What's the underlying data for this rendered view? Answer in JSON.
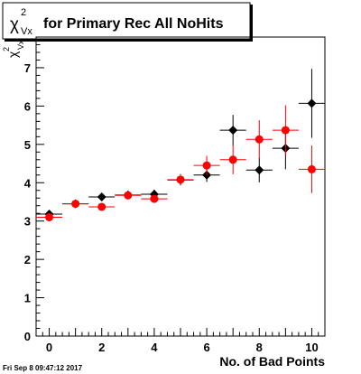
{
  "chart_data": {
    "type": "scatter",
    "title": "for Primary Rec All NoHits",
    "xlabel": "No. of Bad Points",
    "ylabel": "",
    "xlim": [
      -0.5,
      10.5
    ],
    "ylim": [
      0,
      7.8
    ],
    "x_ticks": [
      0,
      2,
      4,
      6,
      8,
      10
    ],
    "y_ticks": [
      0,
      1,
      2,
      3,
      4,
      5,
      6,
      7
    ],
    "grid": false,
    "legend": "none",
    "series": [
      {
        "color": "#000000",
        "marker": "diamond",
        "points": [
          {
            "x": 0,
            "y": 3.18,
            "xerr": 0.5,
            "yerr": 0.06
          },
          {
            "x": 1,
            "y": 3.45,
            "xerr": 0.5,
            "yerr": 0.05
          },
          {
            "x": 2,
            "y": 3.63,
            "xerr": 0.5,
            "yerr": 0.07
          },
          {
            "x": 3,
            "y": 3.68,
            "xerr": 0.5,
            "yerr": 0.08
          },
          {
            "x": 4,
            "y": 3.7,
            "xerr": 0.5,
            "yerr": 0.12
          },
          {
            "x": 5,
            "y": 4.07,
            "xerr": 0.5,
            "yerr": 0.14
          },
          {
            "x": 6,
            "y": 4.2,
            "xerr": 0.5,
            "yerr": 0.18
          },
          {
            "x": 7,
            "y": 5.37,
            "xerr": 0.5,
            "yerr": 0.4
          },
          {
            "x": 8,
            "y": 4.33,
            "xerr": 0.5,
            "yerr": 0.32
          },
          {
            "x": 9,
            "y": 4.9,
            "xerr": 0.5,
            "yerr": 0.55
          },
          {
            "x": 10,
            "y": 6.07,
            "xerr": 0.5,
            "yerr": 0.9
          }
        ]
      },
      {
        "color": "#ff0000",
        "marker": "circle",
        "points": [
          {
            "x": 0,
            "y": 3.1,
            "xerr": 0.5,
            "yerr": 0.05
          },
          {
            "x": 1,
            "y": 3.45,
            "xerr": 0.5,
            "yerr": 0.05
          },
          {
            "x": 2,
            "y": 3.37,
            "xerr": 0.5,
            "yerr": 0.07
          },
          {
            "x": 3,
            "y": 3.67,
            "xerr": 0.5,
            "yerr": 0.08
          },
          {
            "x": 4,
            "y": 3.58,
            "xerr": 0.5,
            "yerr": 0.1
          },
          {
            "x": 5,
            "y": 4.08,
            "xerr": 0.5,
            "yerr": 0.15
          },
          {
            "x": 6,
            "y": 4.45,
            "xerr": 0.5,
            "yerr": 0.25
          },
          {
            "x": 7,
            "y": 4.6,
            "xerr": 0.5,
            "yerr": 0.38
          },
          {
            "x": 8,
            "y": 5.13,
            "xerr": 0.5,
            "yerr": 0.5
          },
          {
            "x": 9,
            "y": 5.37,
            "xerr": 0.5,
            "yerr": 0.65
          },
          {
            "x": 10,
            "y": 4.35,
            "xerr": 0.5,
            "yerr": 0.62
          }
        ]
      }
    ]
  },
  "title_box": {
    "chi_symbol": "χ",
    "chi_sup": "2",
    "chi_sub": "Vx"
  },
  "y_axis_title": {
    "chi_symbol": "χ",
    "chi_sup": "2",
    "chi_sub": "Vx"
  },
  "footer": {
    "timestamp": "Fri Sep  8 09:47:12 2017"
  }
}
